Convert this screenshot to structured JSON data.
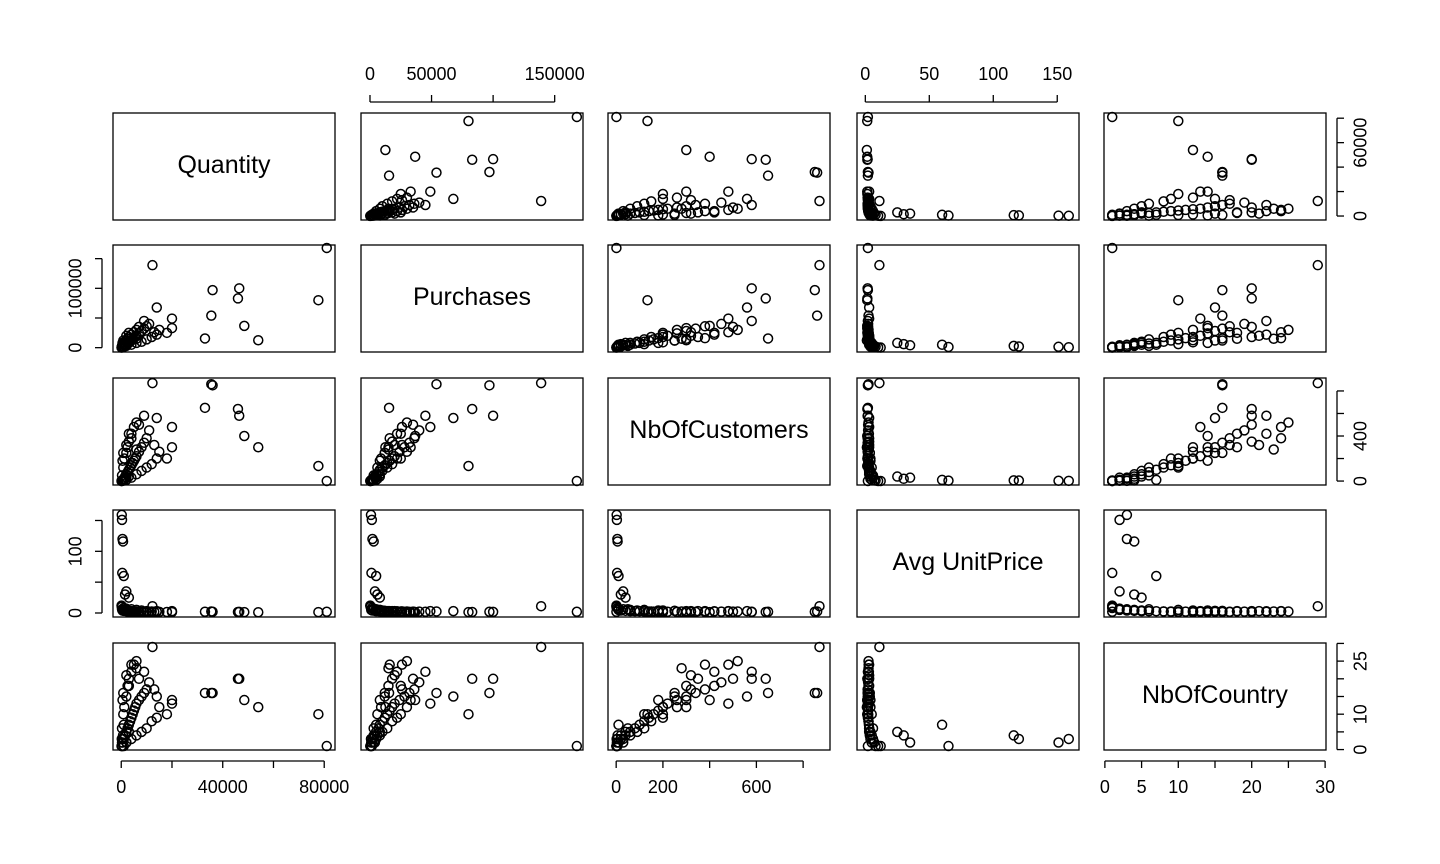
{
  "chart_data": {
    "type": "scatter_matrix",
    "color": "#000000",
    "variables": [
      {
        "name": "Quantity",
        "lim": [
          -3250,
          84250
        ],
        "ticks": [
          0,
          20000,
          40000,
          60000,
          80000
        ],
        "xlabels": [
          0,
          40000,
          80000
        ],
        "ylabels": [
          0,
          60000
        ],
        "values": [
          81000,
          77700,
          46500,
          12300,
          36000,
          46000,
          48500,
          54000,
          35500,
          33000,
          14000,
          20000,
          200,
          300,
          500,
          700,
          400,
          1000,
          2000,
          1500,
          3000,
          500,
          1000,
          1500,
          2000,
          2500,
          3000,
          3500,
          4000,
          4500,
          5000,
          5500,
          6000,
          7000,
          8000,
          9000,
          10000,
          300,
          800,
          1200,
          2000,
          2500,
          3000,
          4000,
          5000,
          6000,
          1000,
          2000,
          4000,
          6000,
          8000,
          10000,
          12000,
          14000,
          3000,
          7000,
          2000,
          500,
          800,
          9000,
          11000,
          15000,
          18000,
          20000,
          13000,
          6000,
          4000,
          200,
          100
        ]
      },
      {
        "name": "Purchases",
        "lim": [
          -7300,
          173000
        ],
        "ticks": [
          0,
          50000,
          100000,
          150000
        ],
        "xlabels": [
          0,
          50000,
          150000
        ],
        "ylabels": [
          0,
          100000
        ],
        "values": [
          168000,
          80000,
          100000,
          139000,
          97000,
          83000,
          36700,
          12500,
          54000,
          15500,
          67700,
          49000,
          800,
          1500,
          2000,
          3000,
          1200,
          5000,
          4000,
          6000,
          8000,
          1000,
          2000,
          4000,
          5000,
          7000,
          8000,
          10000,
          12000,
          14000,
          16000,
          18000,
          20000,
          24000,
          28000,
          32000,
          36000,
          3000,
          6000,
          9000,
          12000,
          15000,
          18000,
          22000,
          26000,
          30000,
          1500,
          3000,
          5000,
          8000,
          10000,
          14000,
          18000,
          22000,
          25000,
          35000,
          20000,
          8000,
          12000,
          45000,
          40000,
          30000,
          25000,
          33000,
          26000,
          15000,
          16000,
          500,
          200
        ]
      },
      {
        "name": "NbOfCustomers",
        "lim": [
          -35,
          915
        ],
        "ticks": [
          0,
          200,
          400,
          600,
          800
        ],
        "xlabels": [
          0,
          200,
          600
        ],
        "ylabels": [
          0,
          400
        ],
        "values": [
          1,
          134,
          580,
          870,
          850,
          640,
          400,
          300,
          860,
          650,
          560,
          480,
          2,
          3,
          5,
          6,
          4,
          10,
          30,
          20,
          40,
          10,
          20,
          40,
          60,
          80,
          100,
          120,
          140,
          160,
          180,
          200,
          220,
          260,
          300,
          340,
          380,
          50,
          120,
          200,
          250,
          300,
          350,
          420,
          480,
          520,
          5,
          10,
          30,
          60,
          90,
          120,
          150,
          200,
          420,
          500,
          320,
          180,
          250,
          580,
          450,
          260,
          200,
          300,
          320,
          280,
          380,
          1,
          1
        ]
      },
      {
        "name": "Avg UnitPrice",
        "lim": [
          -6.5,
          167
        ],
        "ticks": [
          0,
          50,
          100,
          150
        ],
        "xlabels": [
          0,
          50,
          100,
          150
        ],
        "ylabels": [
          0,
          100
        ],
        "values": [
          2,
          1.5,
          1.8,
          11,
          2,
          1.6,
          1.5,
          1.2,
          2.5,
          2,
          3,
          3,
          159,
          151,
          120,
          116,
          65,
          60,
          35,
          30,
          25,
          5,
          4,
          3.5,
          3,
          3,
          2.8,
          2.5,
          2.4,
          2.3,
          2.2,
          2.1,
          2,
          2,
          1.9,
          1.8,
          1.8,
          6,
          5,
          4,
          3.5,
          3,
          3,
          2.8,
          2.6,
          2.5,
          8,
          7,
          6,
          5,
          4,
          3,
          2.5,
          2,
          2.5,
          2.2,
          3,
          4,
          3.5,
          2,
          2.2,
          1.8,
          1.6,
          1.5,
          2,
          2.5,
          3,
          10,
          12
        ]
      },
      {
        "name": "NbOfCountry",
        "lim": [
          -0.12,
          30.12
        ],
        "ticks": [
          0,
          5,
          10,
          15,
          20,
          25,
          30
        ],
        "xlabels": [
          0,
          5,
          10,
          20,
          30
        ],
        "ylabels": [
          0,
          10,
          25
        ],
        "values": [
          1,
          10,
          20,
          29,
          16,
          20,
          14,
          12,
          16,
          16,
          15,
          13,
          3,
          2,
          3,
          4,
          1,
          7,
          2,
          4,
          5,
          2,
          3,
          4,
          5,
          6,
          7,
          8,
          9,
          10,
          11,
          12,
          13,
          14,
          15,
          16,
          17,
          6,
          10,
          12,
          15,
          18,
          20,
          22,
          24,
          25,
          1,
          2,
          3,
          4,
          5,
          6,
          8,
          9,
          18,
          20,
          21,
          14,
          16,
          22,
          19,
          12,
          10,
          14,
          17,
          23,
          24,
          1,
          1
        ]
      }
    ]
  }
}
